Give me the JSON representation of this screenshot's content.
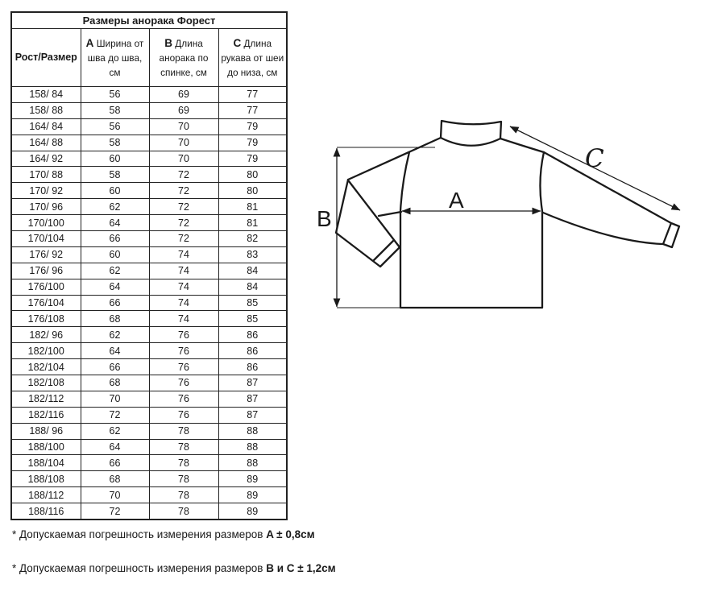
{
  "colors": {
    "background": "#ffffff",
    "ink": "#1a1a1a",
    "table_border": "#222222"
  },
  "table": {
    "title": "Размеры анорака Форест",
    "columns": [
      {
        "key": "size",
        "letter": "",
        "label": "Рост/Размер"
      },
      {
        "key": "a",
        "letter": "A",
        "label": "Ширина от шва до шва, см"
      },
      {
        "key": "b",
        "letter": "B",
        "label": "Длина анорака по спинке, см"
      },
      {
        "key": "c",
        "letter": "C",
        "label": "Длина рукава от шеи до низа, см"
      }
    ],
    "rows": [
      [
        "158/ 84",
        "56",
        "69",
        "77"
      ],
      [
        "158/ 88",
        "58",
        "69",
        "77"
      ],
      [
        "164/ 84",
        "56",
        "70",
        "79"
      ],
      [
        "164/ 88",
        "58",
        "70",
        "79"
      ],
      [
        "164/ 92",
        "60",
        "70",
        "79"
      ],
      [
        "170/ 88",
        "58",
        "72",
        "80"
      ],
      [
        "170/ 92",
        "60",
        "72",
        "80"
      ],
      [
        "170/ 96",
        "62",
        "72",
        "81"
      ],
      [
        "170/100",
        "64",
        "72",
        "81"
      ],
      [
        "170/104",
        "66",
        "72",
        "82"
      ],
      [
        "176/ 92",
        "60",
        "74",
        "83"
      ],
      [
        "176/ 96",
        "62",
        "74",
        "84"
      ],
      [
        "176/100",
        "64",
        "74",
        "84"
      ],
      [
        "176/104",
        "66",
        "74",
        "85"
      ],
      [
        "176/108",
        "68",
        "74",
        "85"
      ],
      [
        "182/ 96",
        "62",
        "76",
        "86"
      ],
      [
        "182/100",
        "64",
        "76",
        "86"
      ],
      [
        "182/104",
        "66",
        "76",
        "86"
      ],
      [
        "182/108",
        "68",
        "76",
        "87"
      ],
      [
        "182/112",
        "70",
        "76",
        "87"
      ],
      [
        "182/116",
        "72",
        "76",
        "87"
      ],
      [
        "188/ 96",
        "62",
        "78",
        "88"
      ],
      [
        "188/100",
        "64",
        "78",
        "88"
      ],
      [
        "188/104",
        "66",
        "78",
        "88"
      ],
      [
        "188/108",
        "68",
        "78",
        "89"
      ],
      [
        "188/112",
        "70",
        "78",
        "89"
      ],
      [
        "188/116",
        "72",
        "78",
        "89"
      ]
    ]
  },
  "diagram": {
    "width_label": "A",
    "length_label": "B",
    "sleeve_label": "C"
  },
  "footnotes": [
    {
      "text": "* Допускаемая погрешность измерения размеров ",
      "bold": "A ± 0,8см"
    },
    {
      "text": "* Допускаемая погрешность измерения размеров ",
      "bold": "B и C ± 1,2см"
    }
  ]
}
